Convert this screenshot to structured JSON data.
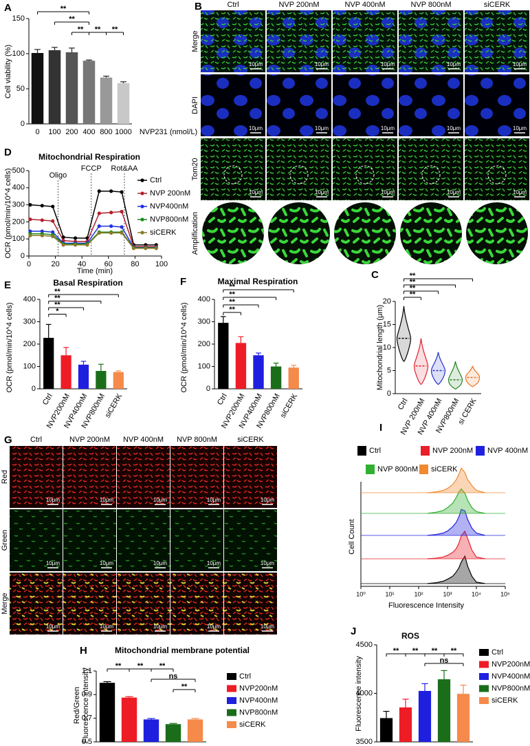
{
  "panel_labels": [
    "A",
    "B",
    "C",
    "D",
    "E",
    "F",
    "G",
    "H",
    "I",
    "J"
  ],
  "images_B": {
    "columns": [
      "Ctrl",
      "NVP 200nM",
      "NVP 400nM",
      "NVP 800nM",
      "siCERK"
    ],
    "rows": [
      "Merge",
      "DAPI",
      "Tom20",
      "Amplification"
    ],
    "scale_bar": "10μm"
  },
  "images_G": {
    "columns": [
      "Ctrl",
      "NVP 200nM",
      "NVP 400nM",
      "NVP 800nM",
      "siCERK"
    ],
    "rows": [
      "Red",
      "Green",
      "Merge"
    ],
    "scale_bar": "10μm"
  },
  "chart_data": [
    {
      "type": "bar",
      "ylabel": "Cell viability (%)",
      "xlabel": "NVP231 (nmol/L)",
      "categories": [
        "0",
        "100",
        "200",
        "400",
        "800",
        "1000"
      ],
      "values": [
        101,
        105,
        102,
        90,
        66,
        58
      ],
      "errors": [
        5,
        4,
        6,
        1,
        2,
        2
      ],
      "colors": [
        "#111111",
        "#333333",
        "#555555",
        "#777777",
        "#999999",
        "#c8c8c8"
      ],
      "ylim": [
        0,
        150
      ],
      "yticks": [
        0,
        50,
        100,
        150
      ],
      "significance": [
        "**",
        "**",
        "**",
        "**",
        "**"
      ]
    },
    {
      "type": "line",
      "title": "Mitochondrial Respiration",
      "ylabel": "OCR (pmol/min/10^4 cells)",
      "xlabel": "Time (min)",
      "x": [
        1,
        10,
        18,
        26,
        35,
        44,
        53,
        62,
        70,
        79,
        88,
        96
      ],
      "xlim": [
        0,
        100
      ],
      "xticks": [
        0,
        20,
        40,
        60,
        80,
        100
      ],
      "ylim": [
        0,
        500
      ],
      "yticks": [
        0,
        100,
        200,
        300,
        400,
        500
      ],
      "annotations": [
        {
          "text": "Oligo",
          "x": 22
        },
        {
          "text": "FCCP",
          "x": 47
        },
        {
          "text": "Rot&AA",
          "x": 72
        }
      ],
      "series": [
        {
          "name": "Ctrl",
          "color": "#000000",
          "values": [
            300,
            295,
            290,
            110,
            105,
            105,
            380,
            380,
            375,
            65,
            65,
            65
          ]
        },
        {
          "name": "NVP 200nM",
          "color": "#b0202a",
          "values": [
            215,
            210,
            205,
            90,
            85,
            85,
            250,
            255,
            260,
            55,
            55,
            55
          ]
        },
        {
          "name": "NVP400nM",
          "color": "#2030e0",
          "values": [
            145,
            145,
            140,
            75,
            75,
            75,
            175,
            175,
            170,
            50,
            50,
            50
          ]
        },
        {
          "name": "NVP800nM",
          "color": "#1a8a1a",
          "values": [
            130,
            130,
            125,
            70,
            70,
            70,
            140,
            140,
            140,
            48,
            48,
            48
          ]
        },
        {
          "name": "siCERK",
          "color": "#8a7a2a",
          "values": [
            120,
            120,
            115,
            65,
            65,
            65,
            135,
            135,
            135,
            45,
            45,
            45
          ]
        }
      ]
    },
    {
      "type": "bar",
      "title": "Basal Respiration",
      "ylabel": "OCR (pmol/min/10^4 cells)",
      "categories": [
        "Ctrl",
        "NVP200nM",
        "NVP400nM",
        "NVP800nM",
        "siCERK"
      ],
      "values": [
        228,
        150,
        108,
        80,
        75
      ],
      "errors": [
        60,
        35,
        15,
        30,
        5
      ],
      "colors": [
        "#000000",
        "#ee1c25",
        "#1f1fe0",
        "#1a6e1a",
        "#f58a4a"
      ],
      "ylim": [
        0,
        400
      ],
      "yticks": [
        0,
        100,
        200,
        300,
        400
      ],
      "significance": [
        "*",
        "**",
        "**",
        "**"
      ]
    },
    {
      "type": "bar",
      "title": "Maximal Respiration",
      "ylabel": "OCR (pmol/min/10^4 cells)",
      "categories": [
        "Ctrl",
        "NVP200nM",
        "NVP400nM",
        "NVP800nM",
        "siCERK"
      ],
      "values": [
        295,
        205,
        150,
        100,
        95
      ],
      "errors": [
        28,
        28,
        10,
        15,
        10
      ],
      "colors": [
        "#000000",
        "#ee1c25",
        "#1f1fe0",
        "#1a6e1a",
        "#f58a4a"
      ],
      "ylim": [
        0,
        400
      ],
      "yticks": [
        0,
        100,
        200,
        300,
        400
      ],
      "significance": [
        "**",
        "**",
        "**",
        "**"
      ]
    },
    {
      "type": "violin",
      "ylabel": "Mitochondrial length (μm)",
      "categories": [
        "Ctrl",
        "NVP 200nM",
        "NVP 400nM",
        "NVP800nM",
        "si CERK"
      ],
      "medians": [
        12,
        6,
        5,
        3,
        3.5
      ],
      "mins": [
        7,
        2,
        2,
        1,
        1.5
      ],
      "maxs": [
        19,
        12,
        9,
        7,
        6
      ],
      "colors": [
        "#000000",
        "#e02030",
        "#2030d0",
        "#208020",
        "#f07020"
      ],
      "ylim": [
        0,
        20
      ],
      "yticks": [
        0,
        5,
        10,
        15,
        20
      ],
      "significance": [
        "**",
        "**",
        "**",
        "**"
      ]
    },
    {
      "type": "ridgeline",
      "ylabel": "Cell Count",
      "xlabel": "Fluorescence Intensity",
      "log_x": true,
      "x": [
        200,
        400,
        700,
        1000,
        1500,
        2000,
        2500,
        3000,
        4000,
        5000,
        7000,
        10000,
        20000
      ],
      "xlim": [
        1,
        100000
      ],
      "xticks": [
        {
          "value": 1,
          "label": "10⁰"
        },
        {
          "value": 10,
          "label": "10¹"
        },
        {
          "value": 100,
          "label": "10²"
        },
        {
          "value": 1000,
          "label": "10³"
        },
        {
          "value": 10000,
          "label": "10⁴"
        },
        {
          "value": 100000,
          "label": "10⁵"
        }
      ],
      "ylim": [
        0,
        100
      ],
      "series": [
        {
          "name": "Ctrl",
          "color": "#000000",
          "values": [
            0,
            3,
            8,
            15,
            25,
            40,
            55,
            75,
            95,
            60,
            25,
            5,
            0
          ]
        },
        {
          "name": "NVP 200nM",
          "color": "#e8202a",
          "values": [
            0,
            2,
            6,
            12,
            22,
            35,
            55,
            80,
            95,
            70,
            30,
            6,
            0
          ]
        },
        {
          "name": "NVP 400nM",
          "color": "#2020e0",
          "values": [
            0,
            3,
            8,
            15,
            30,
            45,
            65,
            90,
            85,
            55,
            25,
            8,
            0
          ]
        },
        {
          "name": "NVP 800nM",
          "color": "#30b030",
          "values": [
            0,
            4,
            10,
            20,
            35,
            55,
            75,
            85,
            70,
            45,
            20,
            6,
            0
          ]
        },
        {
          "name": "siCERK",
          "color": "#f08a30",
          "values": [
            0,
            3,
            8,
            15,
            28,
            45,
            65,
            85,
            70,
            45,
            25,
            8,
            0
          ]
        }
      ]
    },
    {
      "type": "bar",
      "title": "Mitochondrial membrane potential",
      "ylabel": [
        "Red/Green",
        "Fluorescence intensity"
      ],
      "series": [
        {
          "name": "Ctrl",
          "color": "#000000",
          "values": [
            1.0
          ],
          "errors": [
            0.01
          ]
        },
        {
          "name": "NVP200nM",
          "color": "#ee1c25",
          "values": [
            0.875
          ],
          "errors": [
            0.008
          ]
        },
        {
          "name": "NVP400nM",
          "color": "#1f1fe0",
          "values": [
            0.69
          ],
          "errors": [
            0.008
          ]
        },
        {
          "name": "NVP800nM",
          "color": "#1a6e1a",
          "values": [
            0.65
          ],
          "errors": [
            0.006
          ]
        },
        {
          "name": "siCERK",
          "color": "#f58a4a",
          "values": [
            0.69
          ],
          "errors": [
            0.008
          ]
        }
      ],
      "ylim": [
        0.5,
        1.1
      ],
      "yticks": [
        0.5,
        0.7,
        0.9,
        1.1
      ],
      "significance": [
        "**",
        "**",
        "**",
        "ns",
        "**"
      ]
    },
    {
      "type": "bar",
      "title": "ROS",
      "ylabel": "Fluorescence intensity",
      "series": [
        {
          "name": "Ctrl",
          "color": "#000000",
          "values": [
            3745
          ],
          "errors": [
            70
          ]
        },
        {
          "name": "NVP200nM",
          "color": "#ee1c25",
          "values": [
            3855
          ],
          "errors": [
            85
          ]
        },
        {
          "name": "NVP400nM",
          "color": "#1f1fe0",
          "values": [
            4025
          ],
          "errors": [
            75
          ]
        },
        {
          "name": "NVP800nM",
          "color": "#1a6e1a",
          "values": [
            4145
          ],
          "errors": [
            90
          ]
        },
        {
          "name": "siCERK",
          "color": "#f58a4a",
          "values": [
            3995
          ],
          "errors": [
            90
          ]
        }
      ],
      "ylim": [
        3500,
        4500
      ],
      "yticks": [
        3500,
        4000,
        4500
      ],
      "significance": [
        "**",
        "**",
        "**",
        "**",
        "ns"
      ]
    }
  ]
}
